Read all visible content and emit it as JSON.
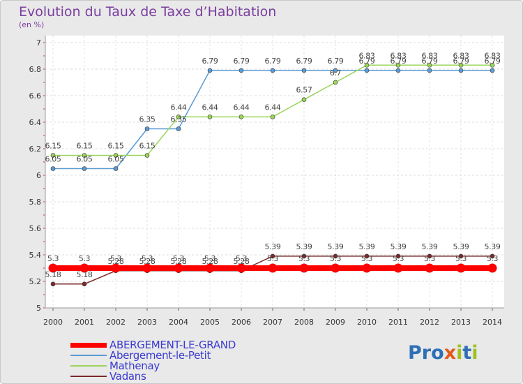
{
  "header": {
    "title": "Evolution du Taux de Taxe d’Habitation",
    "subtitle": "(en %)"
  },
  "colors": {
    "background": "#e9e9e9",
    "plot_background": "#ffffff",
    "title": "#7b3fa0",
    "legend_text": "#3a3ad0",
    "logo": [
      "#2e6fb5",
      "#e55a1c",
      "#d92b2b",
      "#2e6fb5",
      "#a0c020",
      "#2e6fb5"
    ]
  },
  "logo": {
    "text": "Proxiti"
  },
  "chart_data": {
    "type": "line",
    "title": "Evolution du Taux de Taxe d’Habitation",
    "ylabel": "(en %)",
    "xlabel": "",
    "ylim": [
      5,
      7
    ],
    "yticks": [
      5,
      5.2,
      5.4,
      5.6,
      5.8,
      6,
      6.2,
      6.4,
      6.6,
      6.8,
      7
    ],
    "x": [
      "2000",
      "2001",
      "2002",
      "2003",
      "2004",
      "2005",
      "2006",
      "2007",
      "2008",
      "2009",
      "2010",
      "2011",
      "2012",
      "2013",
      "2014"
    ],
    "grid": true,
    "legend_position": "bottom-left",
    "series": [
      {
        "name": "ABERGEMENT-LE-GRAND",
        "color": "#ff0000",
        "values": [
          5.3,
          5.3,
          5.3,
          5.3,
          5.3,
          5.3,
          5.3,
          5.3,
          5.3,
          5.3,
          5.3,
          5.3,
          5.3,
          5.3,
          5.3
        ]
      },
      {
        "name": "Abergement-le-Petit",
        "color": "#5a9bd5",
        "values": [
          6.05,
          6.05,
          6.05,
          6.35,
          6.35,
          6.79,
          6.79,
          6.79,
          6.79,
          6.79,
          6.79,
          6.79,
          6.79,
          6.79,
          6.79
        ]
      },
      {
        "name": "Mathenay",
        "color": "#9ad45a",
        "values": [
          6.15,
          6.15,
          6.15,
          6.15,
          6.44,
          6.44,
          6.44,
          6.44,
          6.57,
          6.7,
          6.83,
          6.83,
          6.83,
          6.83,
          6.83
        ]
      },
      {
        "name": "Vadans",
        "color": "#7a2a2a",
        "values": [
          5.18,
          5.18,
          5.28,
          5.28,
          5.28,
          5.28,
          5.28,
          5.39,
          5.39,
          5.39,
          5.39,
          5.39,
          5.39,
          5.39,
          5.39
        ]
      }
    ],
    "data_labels": {
      "ABERGEMENT-LE-GRAND": [
        "5.3",
        "5.3",
        "5.3",
        "5.3",
        "5.3",
        "5.3",
        "5.3",
        "5.3",
        "5.3",
        "5.3",
        "5.3",
        "5.3",
        "5.3",
        "5.3",
        "5.3"
      ],
      "Abergement-le-Petit": [
        "6.05",
        "6.05",
        "6.05",
        "6.35",
        "6.35",
        "6.79",
        "6.79",
        "6.79",
        "6.79",
        "6.79",
        "6.79",
        "6.79",
        "6.79",
        "6.79",
        "6.79"
      ],
      "Mathenay": [
        "6.15",
        "6.15",
        "6.15",
        "6.15",
        "6.44",
        "6.44",
        "6.44",
        "6.44",
        "6.57",
        "6.7",
        "6.83",
        "6.83",
        "6.83",
        "6.83",
        "6.83"
      ],
      "Vadans": [
        "5.18",
        "5.18",
        "5.28",
        "5.28",
        "5.28",
        "5.28",
        "5.28",
        "5.39",
        "5.39",
        "5.39",
        "5.39",
        "5.39",
        "5.39",
        "5.39",
        "5.39"
      ]
    }
  }
}
